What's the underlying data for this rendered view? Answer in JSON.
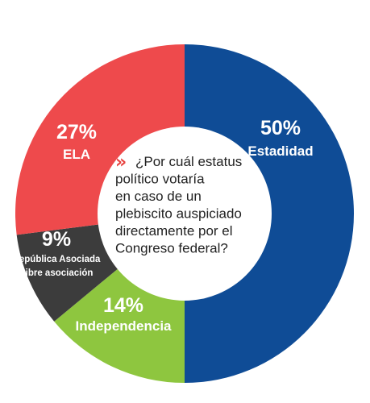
{
  "chart_data": {
    "type": "pie",
    "title": "",
    "donut": true,
    "question_lines": [
      "¿Por cuál estatus",
      "político votaría",
      "en caso de un",
      "plebiscito auspiciado",
      "directamente por el",
      "Congreso federal?"
    ],
    "slices": [
      {
        "key": "estadidad",
        "pct_label": "50%",
        "value": 50,
        "labels": [
          "Estadidad"
        ],
        "color": "#0f4c96"
      },
      {
        "key": "independencia",
        "pct_label": "14%",
        "value": 14,
        "labels": [
          "Independencia"
        ],
        "color": "#8ec63f"
      },
      {
        "key": "republica",
        "pct_label": "9%",
        "value": 9,
        "labels": [
          "República Asociada",
          "Libre asociación"
        ],
        "color": "#3c3c3c"
      },
      {
        "key": "ela",
        "pct_label": "27%",
        "value": 27,
        "labels": [
          "ELA"
        ],
        "color": "#ee4a4c"
      }
    ],
    "question_marker": "»"
  }
}
